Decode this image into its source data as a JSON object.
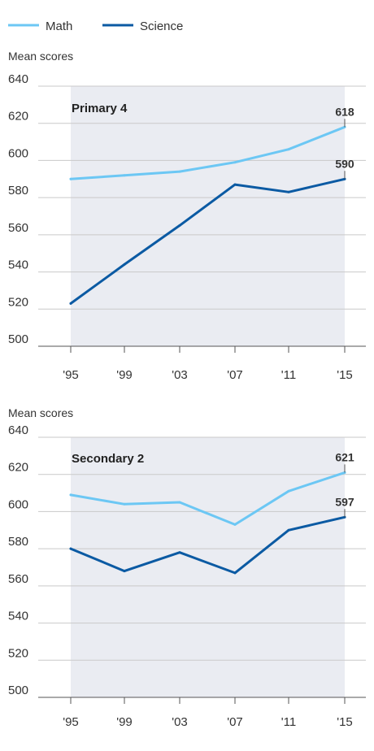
{
  "colors": {
    "math": "#6cc7f4",
    "science": "#0b5aa3",
    "band": "#eaecf2",
    "grid": "#c9c9c9",
    "text": "#333333"
  },
  "legend": [
    {
      "name": "Math",
      "color": "#6cc7f4"
    },
    {
      "name": "Science",
      "color": "#0b5aa3"
    }
  ],
  "chart_data": [
    {
      "type": "line",
      "title": "Primary 4",
      "ylabel": "Mean scores",
      "categories": [
        "'95",
        "'99",
        "'03",
        "'07",
        "'11",
        "'15"
      ],
      "ylim": [
        500,
        640
      ],
      "yticks": [
        500,
        520,
        540,
        560,
        580,
        600,
        620,
        640
      ],
      "series": [
        {
          "name": "Math",
          "values": [
            590,
            592,
            594,
            599,
            606,
            618
          ],
          "end_label": "618"
        },
        {
          "name": "Science",
          "values": [
            523,
            544,
            565,
            587,
            583,
            590
          ],
          "end_label": "590"
        }
      ]
    },
    {
      "type": "line",
      "title": "Secondary 2",
      "ylabel": "Mean scores",
      "categories": [
        "'95",
        "'99",
        "'03",
        "'07",
        "'11",
        "'15"
      ],
      "ylim": [
        500,
        640
      ],
      "yticks": [
        500,
        520,
        540,
        560,
        580,
        600,
        620,
        640
      ],
      "series": [
        {
          "name": "Math",
          "values": [
            609,
            604,
            605,
            593,
            611,
            621
          ],
          "end_label": "621"
        },
        {
          "name": "Science",
          "values": [
            580,
            568,
            578,
            567,
            590,
            597
          ],
          "end_label": "597"
        }
      ]
    }
  ]
}
